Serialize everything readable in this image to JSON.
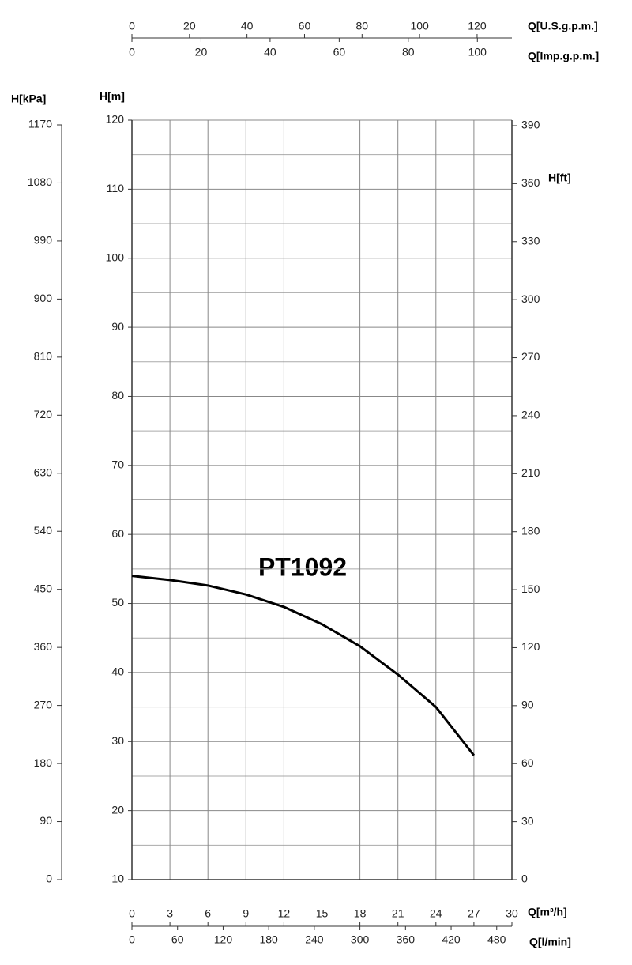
{
  "chart_data": {
    "type": "line",
    "label": "PT1092",
    "x_label": "Q[m³/h]",
    "y_label": "H[m]",
    "x": [
      0,
      3,
      6,
      9,
      12,
      15,
      18,
      21,
      24,
      27
    ],
    "series": [
      {
        "name": "PT1092",
        "color": "#000000",
        "values": [
          54,
          53.4,
          52.6,
          51.3,
          49.5,
          47,
          43.8,
          39.7,
          35,
          28
        ]
      }
    ],
    "xlim": [
      0,
      30
    ],
    "xticks": [
      0,
      3,
      6,
      9,
      12,
      15,
      18,
      21,
      24,
      27,
      30
    ],
    "ylim": [
      10,
      120
    ],
    "yticks": [
      10,
      20,
      30,
      40,
      50,
      60,
      70,
      80,
      90,
      100,
      110,
      120
    ],
    "grid": true,
    "y2label": "H[ft]",
    "y2lim": [
      0,
      390
    ],
    "y2ticks": [
      0,
      30,
      60,
      90,
      120,
      150,
      180,
      210,
      240,
      270,
      300,
      330,
      360,
      390
    ],
    "kpa_axis": {
      "label": "H[kPa]",
      "lim": [
        0,
        1170
      ],
      "ticks": [
        0,
        90,
        180,
        270,
        360,
        450,
        540,
        630,
        720,
        810,
        900,
        990,
        1080,
        1170
      ]
    },
    "usgpm_axis": {
      "label": "Q[U.S.g.p.m.]",
      "lim": [
        0,
        132.1
      ],
      "ticks": [
        0,
        20,
        40,
        60,
        80,
        100,
        120
      ]
    },
    "impgpm_axis": {
      "label": "Q[Imp.g.p.m.]",
      "lim": [
        0,
        110
      ],
      "ticks": [
        0,
        20,
        40,
        60,
        80,
        100
      ]
    },
    "lmin_axis": {
      "label": "Q[l/min]",
      "lim": [
        0,
        500
      ],
      "ticks": [
        0,
        60,
        120,
        180,
        240,
        300,
        360,
        420,
        480
      ]
    }
  }
}
